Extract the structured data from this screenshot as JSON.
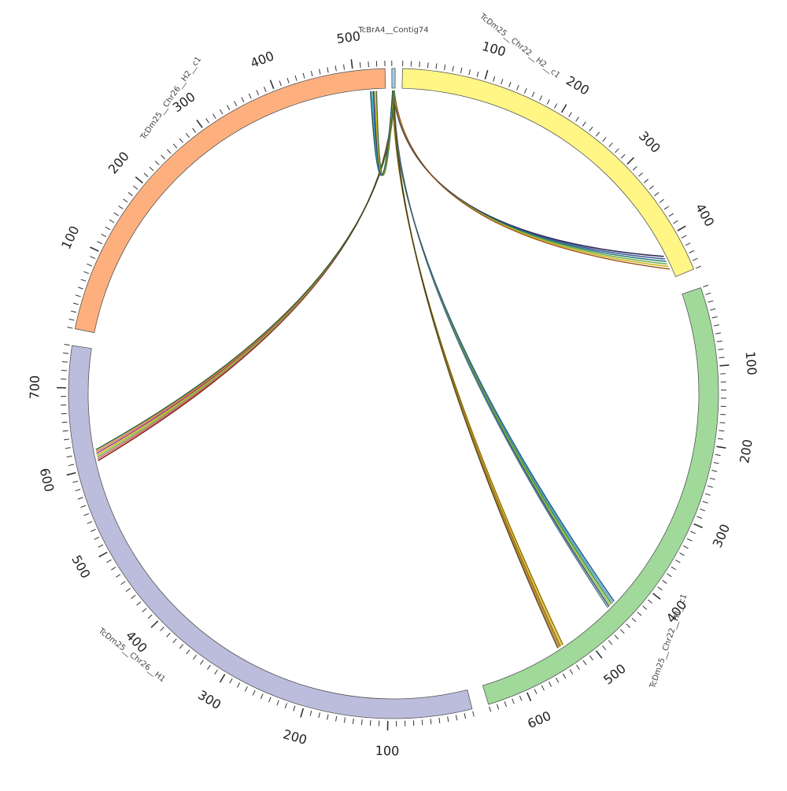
{
  "diagram": {
    "type": "circos",
    "segments": [
      {
        "id": "contig74",
        "label": "TcBrA4__Contig74",
        "color": "#a6cee3",
        "length": 6,
        "ticks": []
      },
      {
        "id": "chr22h2",
        "label": "TcDm25__Chr22__H2__c1",
        "color": "#fff685",
        "length": 450,
        "ticks": [
          100,
          200,
          300,
          400
        ]
      },
      {
        "id": "chr22h1",
        "label": "TcDm25__Chr22__H1__c1",
        "color": "#a1d99b",
        "length": 650,
        "ticks": [
          100,
          200,
          300,
          400,
          500,
          600
        ]
      },
      {
        "id": "chr26h1",
        "label": "TcDm25__Chr26__H1",
        "color": "#bcbddc",
        "length": 750,
        "ticks": [
          100,
          200,
          300,
          400,
          500,
          600,
          700
        ]
      },
      {
        "id": "chr26h2",
        "label": "TcDm25__Chr26__H2__c1",
        "color": "#fdb07e",
        "length": 540,
        "ticks": [
          100,
          200,
          300,
          400,
          500
        ]
      }
    ],
    "links": [
      {
        "from": "contig74",
        "to": "chr22h2",
        "target_start": 420,
        "target_end": 438,
        "colors": [
          "#2b2b6b",
          "#3a4f9a",
          "#1f7a6e",
          "#6aa84f",
          "#c9b400",
          "#e07b39"
        ]
      },
      {
        "from": "contig74",
        "to": "chr22h1",
        "target_start": 440,
        "target_end": 452,
        "colors": [
          "#2f7dbf",
          "#3aa0c9",
          "#3a8a3a",
          "#a3b82b",
          "#1f4f6b",
          "#7fb0d0"
        ]
      },
      {
        "from": "contig74",
        "to": "chr22h1",
        "target_start": 530,
        "target_end": 538,
        "colors": [
          "#c9a100",
          "#e3c82a",
          "#8a6a1f",
          "#d47b1a",
          "#6b6b2b"
        ]
      },
      {
        "from": "contig74",
        "to": "chr26h1",
        "target_start": 608,
        "target_end": 622,
        "colors": [
          "#b22222",
          "#d65a5a",
          "#6aa84f",
          "#c9b400",
          "#8a3a8a",
          "#e07b39",
          "#3a8a3a"
        ]
      },
      {
        "from": "contig74",
        "to": "chr26h2",
        "target_start": 520,
        "target_end": 528,
        "colors": [
          "#1f7a6e",
          "#3aa0c9",
          "#2b2b6b",
          "#c9b400",
          "#6aa84f"
        ]
      }
    ]
  }
}
